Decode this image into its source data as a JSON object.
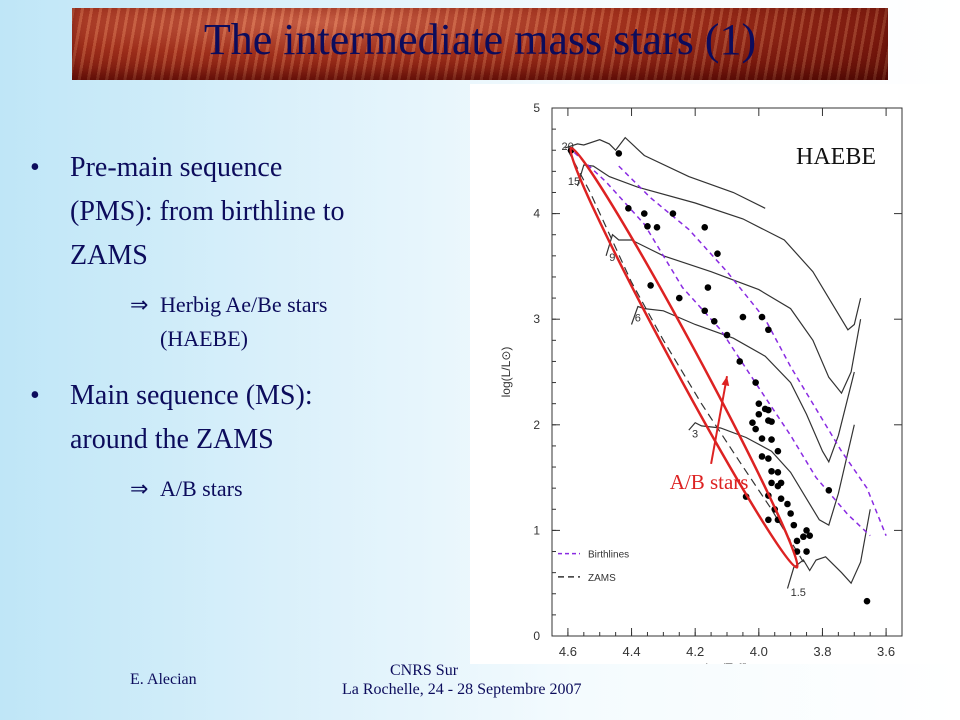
{
  "slide": {
    "title": "The intermediate mass stars (1)",
    "bullets": [
      {
        "text_line1": "Pre-main sequence",
        "text_line2": "(PMS): from birthline to",
        "text_line3": "ZAMS",
        "sub": {
          "line1": "Herbig Ae/Be stars",
          "line2": "(HAEBE)"
        }
      },
      {
        "text_line1": "Main sequence (MS):",
        "text_line2": "around the ZAMS",
        "sub": {
          "line1": "A/B stars"
        }
      }
    ],
    "bullet_glyph": "•",
    "implies_glyph": "⇒",
    "footer": {
      "author": "E. Alecian",
      "event_line1": "CNRS Sur",
      "event_line2": "La Rochelle, 24 - 28 Septembre 2007"
    }
  },
  "chart_data": {
    "type": "scatter",
    "xlabel": "log(Teff)",
    "ylabel": "log(L/L⊙)",
    "xlim": [
      4.65,
      3.55
    ],
    "ylim": [
      0,
      5
    ],
    "xticks": [
      "4.6",
      "4.4",
      "4.2",
      "4.0",
      "3.8",
      "3.6"
    ],
    "yticks": [
      "0",
      "1",
      "2",
      "3",
      "4",
      "5"
    ],
    "annotation_haebe": "HAEBE",
    "annotation_ab": "A/B stars",
    "legend": [
      {
        "label": "Birthlines",
        "style": "dashed",
        "color": "#8a2be2"
      },
      {
        "label": "ZAMS",
        "style": "dashed",
        "color": "#333333"
      }
    ],
    "track_labels": [
      {
        "label": "20",
        "x": 4.62,
        "y": 4.6
      },
      {
        "label": "15",
        "x": 4.6,
        "y": 4.27
      },
      {
        "label": "9",
        "x": 4.47,
        "y": 3.55
      },
      {
        "label": "6",
        "x": 4.39,
        "y": 2.98
      },
      {
        "label": "3",
        "x": 4.21,
        "y": 1.88
      },
      {
        "label": "1.5",
        "x": 3.9,
        "y": 0.38
      }
    ],
    "colors": {
      "ellipse": "#dd2222",
      "arrow": "#dd2222",
      "ab_label": "#dd2222",
      "birthline": "#8a2be2",
      "track": "#333333",
      "point": "#000000"
    },
    "points": [
      {
        "x": 4.59,
        "y": 4.6
      },
      {
        "x": 4.44,
        "y": 4.57
      },
      {
        "x": 4.41,
        "y": 4.05
      },
      {
        "x": 4.36,
        "y": 4.0
      },
      {
        "x": 4.35,
        "y": 3.88
      },
      {
        "x": 4.32,
        "y": 3.87
      },
      {
        "x": 4.27,
        "y": 4.0
      },
      {
        "x": 4.13,
        "y": 3.62
      },
      {
        "x": 4.17,
        "y": 3.87
      },
      {
        "x": 4.34,
        "y": 3.32
      },
      {
        "x": 4.25,
        "y": 3.2
      },
      {
        "x": 4.16,
        "y": 3.3
      },
      {
        "x": 4.05,
        "y": 3.02
      },
      {
        "x": 3.99,
        "y": 3.02
      },
      {
        "x": 4.17,
        "y": 3.08
      },
      {
        "x": 4.14,
        "y": 2.98
      },
      {
        "x": 4.1,
        "y": 2.85
      },
      {
        "x": 4.06,
        "y": 2.6
      },
      {
        "x": 3.97,
        "y": 2.9
      },
      {
        "x": 4.01,
        "y": 2.4
      },
      {
        "x": 4.0,
        "y": 2.2
      },
      {
        "x": 3.98,
        "y": 2.15
      },
      {
        "x": 3.97,
        "y": 2.14
      },
      {
        "x": 4.0,
        "y": 2.1
      },
      {
        "x": 4.02,
        "y": 2.02
      },
      {
        "x": 4.01,
        "y": 1.96
      },
      {
        "x": 3.97,
        "y": 2.04
      },
      {
        "x": 3.96,
        "y": 2.03
      },
      {
        "x": 3.99,
        "y": 1.87
      },
      {
        "x": 3.96,
        "y": 1.86
      },
      {
        "x": 3.99,
        "y": 1.7
      },
      {
        "x": 3.97,
        "y": 1.68
      },
      {
        "x": 3.94,
        "y": 1.75
      },
      {
        "x": 3.94,
        "y": 1.55
      },
      {
        "x": 3.96,
        "y": 1.56
      },
      {
        "x": 3.93,
        "y": 1.45
      },
      {
        "x": 3.96,
        "y": 1.45
      },
      {
        "x": 3.94,
        "y": 1.42
      },
      {
        "x": 3.97,
        "y": 1.33
      },
      {
        "x": 3.93,
        "y": 1.3
      },
      {
        "x": 3.95,
        "y": 1.2
      },
      {
        "x": 3.97,
        "y": 1.1
      },
      {
        "x": 3.94,
        "y": 1.1
      },
      {
        "x": 3.91,
        "y": 1.25
      },
      {
        "x": 3.9,
        "y": 1.16
      },
      {
        "x": 3.89,
        "y": 1.05
      },
      {
        "x": 3.88,
        "y": 0.8
      },
      {
        "x": 3.85,
        "y": 0.8
      },
      {
        "x": 3.86,
        "y": 0.94
      },
      {
        "x": 3.88,
        "y": 0.9
      },
      {
        "x": 3.84,
        "y": 0.95
      },
      {
        "x": 4.04,
        "y": 1.32
      },
      {
        "x": 3.78,
        "y": 1.38
      },
      {
        "x": 3.66,
        "y": 0.33
      },
      {
        "x": 3.85,
        "y": 1.0
      }
    ],
    "zams": [
      [
        4.6,
        4.6
      ],
      [
        4.53,
        4.2
      ],
      [
        4.4,
        3.35
      ],
      [
        4.3,
        2.8
      ],
      [
        4.18,
        2.2
      ],
      [
        4.06,
        1.65
      ],
      [
        3.96,
        1.2
      ],
      [
        3.86,
        0.7
      ]
    ],
    "birthline": [
      [
        4.58,
        4.58
      ],
      [
        4.48,
        4.3
      ],
      [
        4.36,
        3.9
      ],
      [
        4.24,
        3.3
      ],
      [
        4.12,
        2.9
      ],
      [
        4.0,
        2.35
      ],
      [
        3.9,
        1.9
      ],
      [
        3.82,
        1.5
      ],
      [
        3.72,
        1.15
      ],
      [
        3.65,
        0.95
      ]
    ],
    "birthline2": [
      [
        4.44,
        4.45
      ],
      [
        4.34,
        4.15
      ],
      [
        4.22,
        3.85
      ],
      [
        4.1,
        3.45
      ],
      [
        3.98,
        3.0
      ],
      [
        3.9,
        2.55
      ],
      [
        3.82,
        2.15
      ],
      [
        3.74,
        1.75
      ],
      [
        3.66,
        1.4
      ],
      [
        3.6,
        0.95
      ]
    ],
    "tracks": [
      [
        [
          4.61,
          4.62
        ],
        [
          4.57,
          4.66
        ],
        [
          4.55,
          4.65
        ],
        [
          4.5,
          4.7
        ],
        [
          4.47,
          4.66
        ],
        [
          4.45,
          4.6
        ],
        [
          4.42,
          4.72
        ],
        [
          4.36,
          4.55
        ],
        [
          4.22,
          4.35
        ],
        [
          4.08,
          4.2
        ],
        [
          3.98,
          4.05
        ]
      ],
      [
        [
          4.57,
          4.26
        ],
        [
          4.55,
          4.46
        ],
        [
          4.52,
          4.45
        ],
        [
          4.47,
          4.35
        ],
        [
          4.38,
          4.25
        ],
        [
          4.2,
          4.1
        ],
        [
          4.05,
          3.95
        ],
        [
          3.92,
          3.75
        ],
        [
          3.83,
          3.45
        ],
        [
          3.77,
          3.15
        ],
        [
          3.72,
          2.9
        ],
        [
          3.7,
          2.95
        ],
        [
          3.68,
          3.2
        ]
      ],
      [
        [
          4.48,
          3.6
        ],
        [
          4.46,
          3.8
        ],
        [
          4.44,
          3.75
        ],
        [
          4.4,
          3.75
        ],
        [
          4.3,
          3.6
        ],
        [
          4.15,
          3.45
        ],
        [
          4.0,
          3.28
        ],
        [
          3.9,
          3.1
        ],
        [
          3.83,
          2.8
        ],
        [
          3.78,
          2.45
        ],
        [
          3.74,
          2.3
        ],
        [
          3.71,
          2.5
        ],
        [
          3.68,
          3.0
        ]
      ],
      [
        [
          4.4,
          2.95
        ],
        [
          4.38,
          3.12
        ],
        [
          4.36,
          3.1
        ],
        [
          4.3,
          3.08
        ],
        [
          4.2,
          2.95
        ],
        [
          4.08,
          2.82
        ],
        [
          3.98,
          2.65
        ],
        [
          3.9,
          2.4
        ],
        [
          3.85,
          2.1
        ],
        [
          3.8,
          1.75
        ],
        [
          3.78,
          1.65
        ],
        [
          3.75,
          1.9
        ],
        [
          3.7,
          2.5
        ]
      ],
      [
        [
          4.22,
          1.95
        ],
        [
          4.2,
          2.02
        ],
        [
          4.18,
          1.99
        ],
        [
          4.12,
          1.97
        ],
        [
          4.04,
          1.88
        ],
        [
          3.96,
          1.75
        ],
        [
          3.9,
          1.55
        ],
        [
          3.85,
          1.3
        ],
        [
          3.81,
          1.1
        ],
        [
          3.78,
          1.05
        ],
        [
          3.75,
          1.35
        ],
        [
          3.7,
          2.0
        ]
      ],
      [
        [
          3.91,
          0.45
        ],
        [
          3.89,
          0.65
        ],
        [
          3.86,
          0.72
        ],
        [
          3.84,
          0.62
        ],
        [
          3.82,
          0.72
        ],
        [
          3.79,
          0.75
        ],
        [
          3.74,
          0.6
        ],
        [
          3.71,
          0.5
        ],
        [
          3.68,
          0.7
        ],
        [
          3.65,
          1.2
        ]
      ]
    ],
    "ellipse": {
      "x1": 4.59,
      "y1": 4.62,
      "x2": 3.88,
      "y2": 0.65
    },
    "arrow": {
      "from": [
        4.15,
        1.63
      ],
      "to": [
        4.1,
        2.46
      ]
    }
  }
}
